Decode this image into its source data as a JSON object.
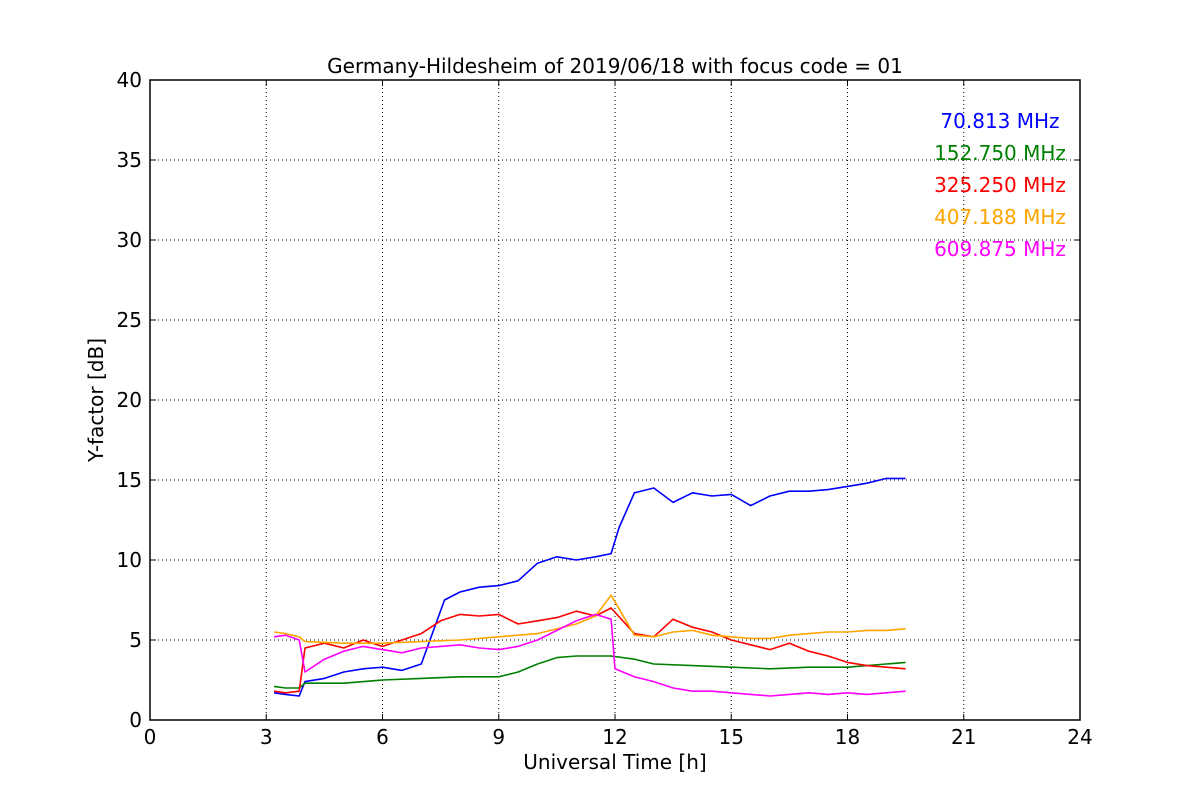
{
  "chart_data": {
    "type": "line",
    "title": "Germany-Hildesheim of 2019/06/18 with focus code = 01",
    "xlabel": "Universal Time [h]",
    "ylabel": "Y-factor [dB]",
    "xlim": [
      0,
      24
    ],
    "ylim": [
      0,
      40
    ],
    "xticks": [
      0,
      3,
      6,
      9,
      12,
      15,
      18,
      21,
      24
    ],
    "yticks": [
      0,
      5,
      10,
      15,
      20,
      25,
      30,
      35,
      40
    ],
    "grid": true,
    "legend_position": "top-right",
    "series": [
      {
        "name": "70.813 MHz",
        "color": "#0000ff",
        "x": [
          3.2,
          3.5,
          3.85,
          4.0,
          4.5,
          5.0,
          5.5,
          6.0,
          6.5,
          7.0,
          7.3,
          7.6,
          8.0,
          8.5,
          9.0,
          9.5,
          10.0,
          10.5,
          11.0,
          11.5,
          11.9,
          12.1,
          12.5,
          13.0,
          13.5,
          14.0,
          14.5,
          15.0,
          15.5,
          16.0,
          16.5,
          17.0,
          17.5,
          18.0,
          18.5,
          19.0,
          19.5
        ],
        "y": [
          1.7,
          1.6,
          1.5,
          2.4,
          2.6,
          3.0,
          3.2,
          3.3,
          3.1,
          3.5,
          5.5,
          7.5,
          8.0,
          8.3,
          8.4,
          8.7,
          9.8,
          10.2,
          10.0,
          10.2,
          10.4,
          12.0,
          14.2,
          14.5,
          13.6,
          14.2,
          14.0,
          14.1,
          13.4,
          14.0,
          14.3,
          14.3,
          14.4,
          14.6,
          14.8,
          15.1,
          15.1
        ]
      },
      {
        "name": "152.750 MHz",
        "color": "#008000",
        "x": [
          3.2,
          3.5,
          3.85,
          4.0,
          5.0,
          6.0,
          7.0,
          8.0,
          9.0,
          9.5,
          10.0,
          10.5,
          11.0,
          11.5,
          11.9,
          12.5,
          13.0,
          14.0,
          15.0,
          16.0,
          17.0,
          18.0,
          19.0,
          19.5
        ],
        "y": [
          2.1,
          2.0,
          2.0,
          2.3,
          2.3,
          2.5,
          2.6,
          2.7,
          2.7,
          3.0,
          3.5,
          3.9,
          4.0,
          4.0,
          4.0,
          3.8,
          3.5,
          3.4,
          3.3,
          3.2,
          3.3,
          3.3,
          3.5,
          3.6
        ]
      },
      {
        "name": "325.250 MHz",
        "color": "#ff0000",
        "x": [
          3.2,
          3.5,
          3.85,
          4.0,
          4.5,
          5.0,
          5.5,
          6.0,
          6.5,
          7.0,
          7.5,
          8.0,
          8.5,
          9.0,
          9.5,
          10.0,
          10.5,
          11.0,
          11.5,
          11.9,
          12.5,
          13.0,
          13.5,
          14.0,
          14.5,
          15.0,
          15.5,
          16.0,
          16.5,
          17.0,
          17.5,
          18.0,
          18.5,
          19.0,
          19.5
        ],
        "y": [
          1.8,
          1.7,
          1.8,
          4.5,
          4.8,
          4.5,
          5.0,
          4.6,
          5.0,
          5.4,
          6.2,
          6.6,
          6.5,
          6.6,
          6.0,
          6.2,
          6.4,
          6.8,
          6.5,
          7.0,
          5.4,
          5.2,
          6.3,
          5.8,
          5.5,
          5.0,
          4.7,
          4.4,
          4.8,
          4.3,
          4.0,
          3.6,
          3.4,
          3.3,
          3.2
        ]
      },
      {
        "name": "407.188 MHz",
        "color": "#ffa500",
        "x": [
          3.2,
          3.5,
          3.85,
          4.0,
          5.0,
          6.0,
          7.0,
          8.0,
          9.0,
          10.0,
          11.0,
          11.5,
          11.9,
          12.5,
          13.0,
          13.5,
          14.0,
          14.5,
          15.0,
          15.5,
          16.0,
          16.5,
          17.0,
          17.5,
          18.0,
          18.5,
          19.0,
          19.5
        ],
        "y": [
          5.5,
          5.4,
          5.2,
          4.9,
          4.8,
          4.8,
          4.9,
          5.0,
          5.2,
          5.4,
          6.0,
          6.5,
          7.8,
          5.3,
          5.2,
          5.5,
          5.6,
          5.3,
          5.2,
          5.1,
          5.1,
          5.3,
          5.4,
          5.5,
          5.5,
          5.6,
          5.6,
          5.7
        ]
      },
      {
        "name": "609.875 MHz",
        "color": "#ff00ff",
        "x": [
          3.2,
          3.5,
          3.85,
          4.0,
          4.5,
          5.0,
          5.5,
          6.0,
          6.5,
          7.0,
          7.5,
          8.0,
          8.5,
          9.0,
          9.5,
          10.0,
          10.5,
          11.0,
          11.5,
          11.9,
          12.0,
          12.5,
          13.0,
          13.5,
          14.0,
          14.5,
          15.0,
          15.5,
          16.0,
          16.5,
          17.0,
          17.5,
          18.0,
          18.5,
          19.0,
          19.5
        ],
        "y": [
          5.2,
          5.3,
          5.0,
          3.0,
          3.8,
          4.3,
          4.6,
          4.4,
          4.2,
          4.5,
          4.6,
          4.7,
          4.5,
          4.4,
          4.6,
          5.0,
          5.6,
          6.2,
          6.6,
          6.3,
          3.2,
          2.7,
          2.4,
          2.0,
          1.8,
          1.8,
          1.7,
          1.6,
          1.5,
          1.6,
          1.7,
          1.6,
          1.7,
          1.6,
          1.7,
          1.8
        ]
      }
    ]
  }
}
